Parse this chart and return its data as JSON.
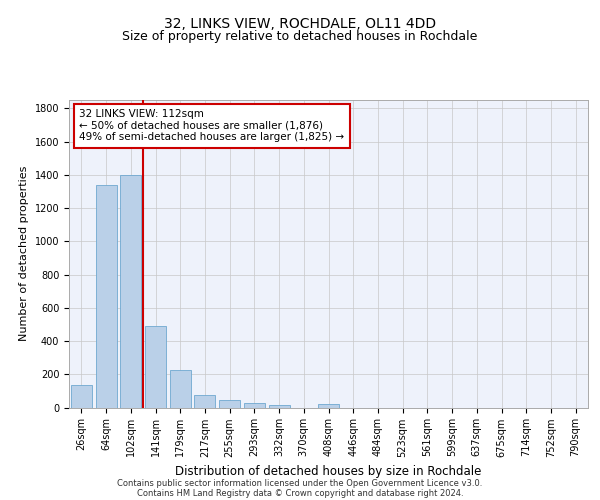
{
  "title_line1": "32, LINKS VIEW, ROCHDALE, OL11 4DD",
  "title_line2": "Size of property relative to detached houses in Rochdale",
  "xlabel": "Distribution of detached houses by size in Rochdale",
  "ylabel": "Number of detached properties",
  "footnote1": "Contains HM Land Registry data © Crown copyright and database right 2024.",
  "footnote2": "Contains public sector information licensed under the Open Government Licence v3.0.",
  "categories": [
    "26sqm",
    "64sqm",
    "102sqm",
    "141sqm",
    "179sqm",
    "217sqm",
    "255sqm",
    "293sqm",
    "332sqm",
    "370sqm",
    "408sqm",
    "446sqm",
    "484sqm",
    "523sqm",
    "561sqm",
    "599sqm",
    "637sqm",
    "675sqm",
    "714sqm",
    "752sqm",
    "790sqm"
  ],
  "values": [
    135,
    1340,
    1400,
    490,
    225,
    75,
    45,
    28,
    15,
    0,
    20,
    0,
    0,
    0,
    0,
    0,
    0,
    0,
    0,
    0,
    0
  ],
  "bar_color": "#bad0e8",
  "bar_edge_color": "#6fa8d0",
  "vline_color": "#cc0000",
  "annotation_box_text": "32 LINKS VIEW: 112sqm\n← 50% of detached houses are smaller (1,876)\n49% of semi-detached houses are larger (1,825) →",
  "ylim": [
    0,
    1850
  ],
  "yticks": [
    0,
    200,
    400,
    600,
    800,
    1000,
    1200,
    1400,
    1600,
    1800
  ],
  "bg_color": "#eef2fb",
  "grid_color": "#c8c8c8",
  "title_fontsize": 10,
  "subtitle_fontsize": 9,
  "axis_label_fontsize": 8,
  "tick_fontsize": 7,
  "annot_fontsize": 7.5,
  "footnote_fontsize": 6
}
